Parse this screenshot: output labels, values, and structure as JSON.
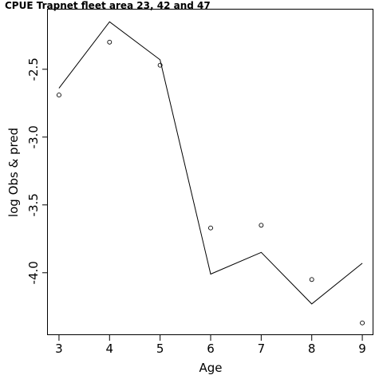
{
  "chart_data": {
    "type": "line",
    "title": "CPUE Trapnet fleet area 23, 42 and 47",
    "xlabel": "Age",
    "ylabel": "log Obs & pred",
    "x": [
      3,
      4,
      5,
      6,
      7,
      8,
      9
    ],
    "xlim": [
      2.78,
      9.22
    ],
    "ylim": [
      -4.46,
      -2.06
    ],
    "xticks": [
      "3",
      "4",
      "5",
      "6",
      "7",
      "8",
      "9"
    ],
    "yticks": [
      "-4.0",
      "-3.5",
      "-3.0",
      "-2.5"
    ],
    "series": [
      {
        "style": "line",
        "values": [
          -2.64,
          -2.15,
          -2.43,
          -4.01,
          -3.85,
          -4.23,
          -3.93
        ]
      },
      {
        "style": "points",
        "values": [
          -2.69,
          -2.3,
          -2.47,
          -3.67,
          -3.65,
          -4.05,
          -4.37
        ]
      }
    ],
    "grid": false,
    "legend": "none"
  }
}
